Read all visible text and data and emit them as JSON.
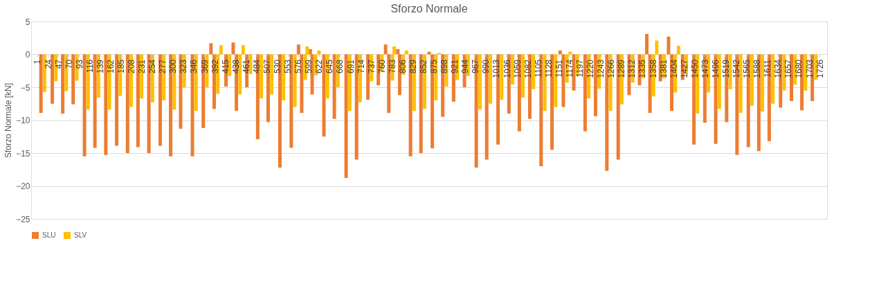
{
  "chart_data": {
    "type": "bar",
    "title": "Sforzo Normale",
    "ylabel": "Sforzo Normale [kN]",
    "xlim": [
      -5,
      1735
    ],
    "xticks": [
      1,
      24,
      47,
      70,
      93,
      116,
      139,
      162,
      185,
      208,
      231,
      254,
      277,
      300,
      323,
      346,
      369,
      392,
      415,
      438,
      461,
      484,
      507,
      530,
      553,
      576,
      599,
      622,
      645,
      668,
      691,
      714,
      737,
      760,
      783,
      806,
      829,
      852,
      875,
      898,
      921,
      944,
      967,
      990,
      1013,
      1036,
      1059,
      1082,
      1105,
      1128,
      1151,
      1174,
      1197,
      1220,
      1243,
      1266,
      1289,
      1312,
      1335,
      1358,
      1381,
      1404,
      1427,
      1450,
      1473,
      1496,
      1519,
      1542,
      1565,
      1588,
      1611,
      1634,
      1657,
      1680,
      1703,
      1726
    ],
    "ylim": [
      -25,
      5
    ],
    "yticks": [
      -25,
      -20,
      -15,
      -10,
      -5,
      0,
      5
    ],
    "grid": "y",
    "legend": "bottom",
    "series": [
      {
        "name": "SLU",
        "color": "#ed7d31",
        "x": [
          9,
          34,
          57,
          80,
          105,
          128,
          152,
          176,
          200,
          223,
          247,
          272,
          295,
          317,
          343,
          367,
          384,
          391,
          417,
          433,
          440,
          463,
          487,
          510,
          536,
          561,
          577,
          584,
          603,
          607,
          633,
          656,
          682,
          705,
          730,
          753,
          769,
          776,
          796,
          800,
          824,
          847,
          865,
          872,
          895,
          919,
          943,
          969,
          992,
          1017,
          1041,
          1064,
          1087,
          1112,
          1136,
          1154,
          1161,
          1184,
          1209,
          1232,
          1257,
          1282,
          1306,
          1329,
          1345,
          1352,
          1375,
          1393,
          1400,
          1424,
          1449,
          1473,
          1497,
          1521,
          1544,
          1569,
          1592,
          1615,
          1640,
          1664,
          1687,
          1710
        ],
        "values": [
          -8.9,
          -7.5,
          -9.0,
          -7.6,
          -15.5,
          -14.2,
          -15.3,
          -13.9,
          -15.0,
          -14.1,
          -15.0,
          -13.9,
          -15.5,
          -11.3,
          -15.5,
          -11.2,
          1.7,
          -8.3,
          -4.9,
          1.8,
          -8.6,
          -5.0,
          -12.9,
          -10.3,
          -17.2,
          -14.2,
          1.5,
          -8.9,
          0.8,
          -6.1,
          -12.5,
          -9.8,
          -18.8,
          -16.0,
          -6.9,
          -4.7,
          1.5,
          -8.9,
          0.8,
          -6.2,
          -15.5,
          -15.0,
          0.4,
          -14.3,
          -9.5,
          -7.2,
          -5.0,
          -17.2,
          -16.0,
          -13.7,
          -9.0,
          -11.7,
          -9.8,
          -17.0,
          -14.5,
          0.6,
          -8.0,
          -5.5,
          -11.7,
          -9.4,
          -17.7,
          -16.0,
          -6.2,
          -4.7,
          3.1,
          -8.9,
          -4.1,
          2.7,
          -8.6,
          -3.9,
          -13.7,
          -10.4,
          -13.6,
          -10.3,
          -15.3,
          -14.1,
          -14.7,
          -13.2,
          -8.1,
          -7.1,
          -8.5,
          -7.1
        ]
      },
      {
        "name": "SLV",
        "color": "#ffc000",
        "x": [
          17,
          42,
          65,
          88,
          113,
          136,
          160,
          184,
          208,
          231,
          255,
          280,
          303,
          325,
          351,
          375,
          399,
          406,
          425,
          448,
          455,
          471,
          495,
          518,
          544,
          569,
          592,
          596,
          615,
          622,
          641,
          664,
          690,
          713,
          738,
          761,
          784,
          788,
          808,
          815,
          832,
          855,
          880,
          887,
          903,
          927,
          951,
          977,
          1000,
          1025,
          1049,
          1072,
          1095,
          1120,
          1144,
          1169,
          1176,
          1192,
          1217,
          1240,
          1265,
          1290,
          1314,
          1337,
          1360,
          1367,
          1383,
          1408,
          1415,
          1432,
          1457,
          1481,
          1505,
          1529,
          1552,
          1577,
          1600,
          1623,
          1648,
          1672,
          1695,
          1718
        ],
        "values": [
          -5.7,
          -4.1,
          -5.6,
          -4.0,
          -8.4,
          -6.6,
          -8.4,
          -6.3,
          -8.0,
          -6.7,
          -7.3,
          -7.0,
          -8.4,
          -5.0,
          -8.6,
          -5.0,
          -6.0,
          1.4,
          -3.3,
          -6.1,
          1.4,
          -3.0,
          -6.7,
          -6.1,
          -7.0,
          -8.0,
          -3.9,
          1.2,
          -3.2,
          0.6,
          -6.7,
          -5.0,
          -8.6,
          -7.3,
          -4.1,
          -2.7,
          -4.0,
          1.2,
          -3.1,
          0.6,
          -8.6,
          -8.3,
          -7.0,
          0.2,
          -4.9,
          -3.9,
          -3.3,
          -8.4,
          -7.5,
          -6.9,
          -4.6,
          -6.6,
          -5.3,
          -8.6,
          -8.0,
          -4.3,
          0.4,
          -3.3,
          -6.7,
          -5.2,
          -8.6,
          -7.6,
          -4.3,
          -3.6,
          -6.4,
          2.1,
          -3.6,
          -5.8,
          1.3,
          -3.0,
          -9.0,
          -5.8,
          -8.3,
          -5.3,
          -8.9,
          -7.8,
          -8.7,
          -7.5,
          -5.5,
          -4.6,
          -5.5,
          -3.9
        ]
      }
    ]
  }
}
